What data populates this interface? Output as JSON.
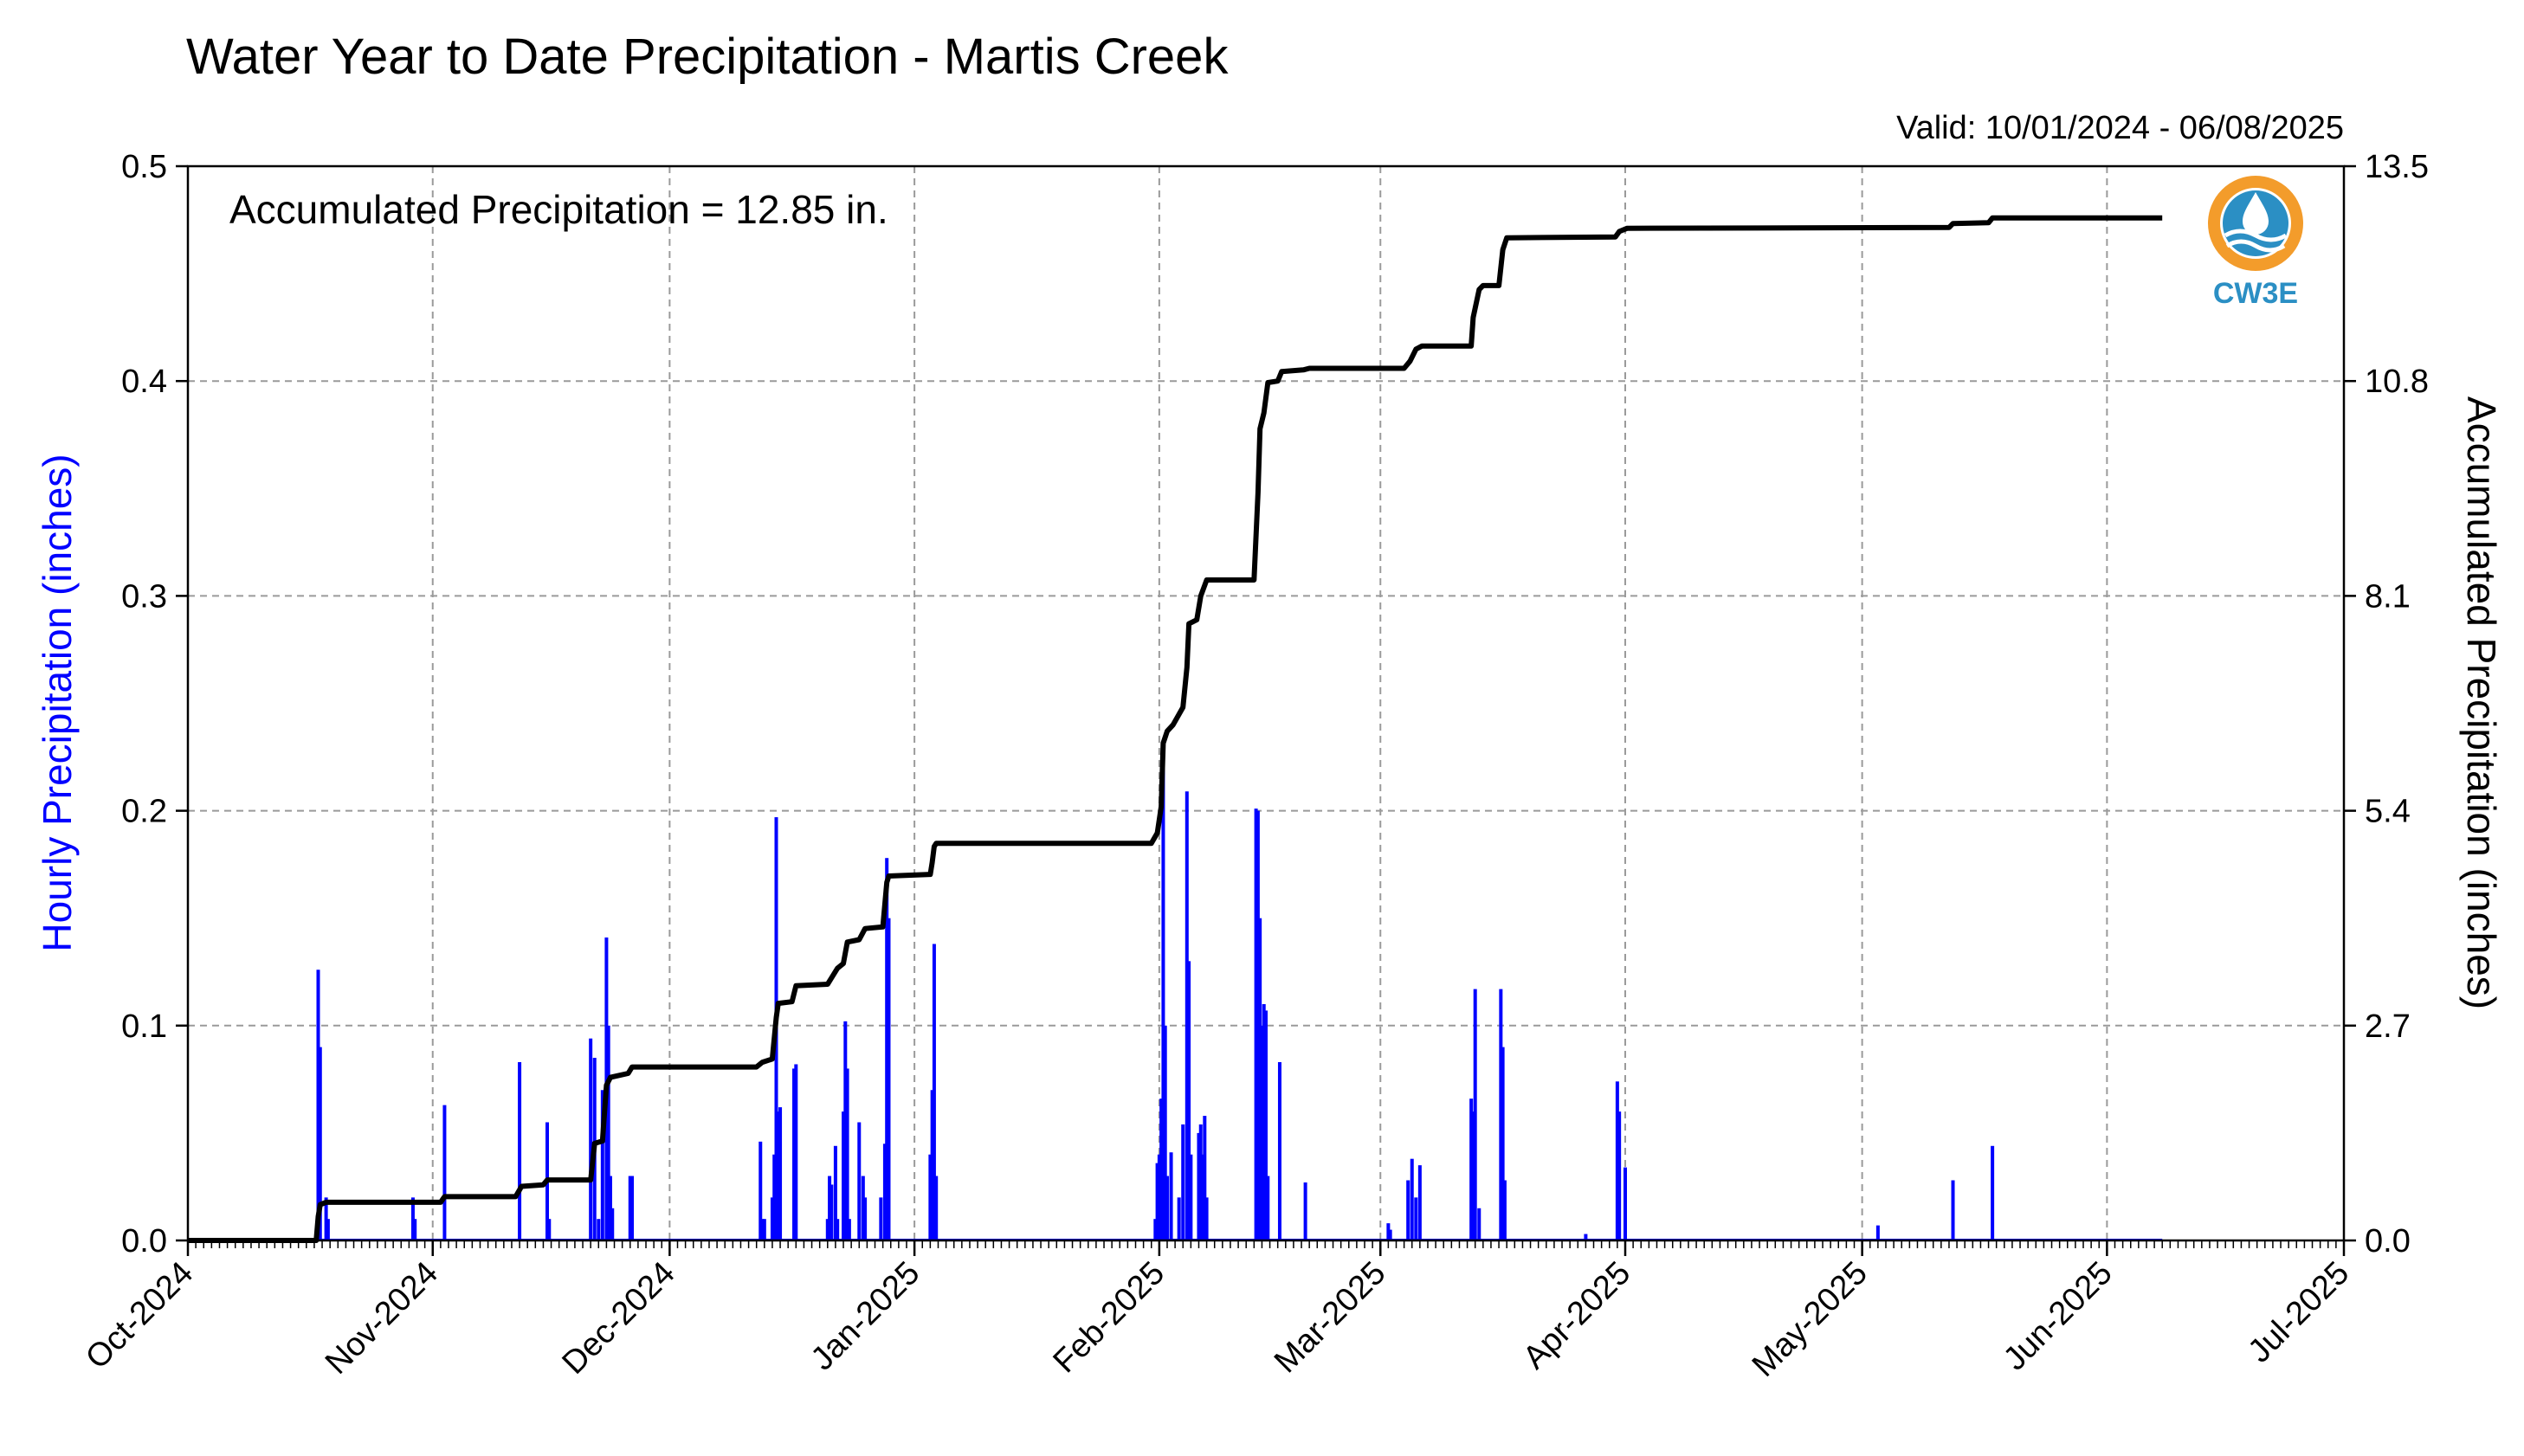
{
  "logo": {
    "label": "CW3E",
    "color": "#2b8fc4",
    "ring_color": "#f39c2b"
  },
  "colors": {
    "hourly": "#0000ff",
    "accum": "#000000",
    "grid": "#9a9a9a"
  },
  "chart_data": {
    "type": "bar",
    "title": "Water Year to Date Precipitation - Martis Creek",
    "subtitle": "Valid: 10/01/2024 - 06/08/2025",
    "annotation": "Accumulated Precipitation = 12.85 in.",
    "ylabel": "Hourly Precipitation (inches)",
    "y2label": "Accumulated Precipitation (inches)",
    "xlim": [
      "2024-10-01",
      "2025-07-01"
    ],
    "ylim": [
      0,
      0.5
    ],
    "y2lim": [
      0,
      13.5
    ],
    "yticks": [
      "0.0",
      "0.1",
      "0.2",
      "0.3",
      "0.4",
      "0.5"
    ],
    "y2ticks": [
      "0.0",
      "2.7",
      "5.4",
      "8.1",
      "10.8",
      "13.5"
    ],
    "xticks": [
      "Oct-2024",
      "Nov-2024",
      "Dec-2024",
      "Jan-2025",
      "Feb-2025",
      "Mar-2025",
      "Apr-2025",
      "May-2025",
      "Jun-2025",
      "Jul-2025"
    ],
    "xtick_dates": [
      "2024-10-01",
      "2024-11-01",
      "2024-12-01",
      "2025-01-01",
      "2025-02-01",
      "2025-03-01",
      "2025-04-01",
      "2025-05-01",
      "2025-06-01",
      "2025-07-01"
    ],
    "grid": true,
    "series": [
      {
        "name": "Hourly Precipitation",
        "type": "bar",
        "points": [
          [
            "2024-10-17T12:00",
            0.126
          ],
          [
            "2024-10-17T18:00",
            0.09
          ],
          [
            "2024-10-18T12:00",
            0.02
          ],
          [
            "2024-10-18T18:00",
            0.01
          ],
          [
            "2024-10-29T12:00",
            0.02
          ],
          [
            "2024-10-29T18:00",
            0.01
          ],
          [
            "2024-11-02T12:00",
            0.063
          ],
          [
            "2024-11-12T00:00",
            0.083
          ],
          [
            "2024-11-15T12:00",
            0.055
          ],
          [
            "2024-11-15T18:00",
            0.01
          ],
          [
            "2024-11-21T00:00",
            0.094
          ],
          [
            "2024-11-21T12:00",
            0.085
          ],
          [
            "2024-11-22T00:00",
            0.01
          ],
          [
            "2024-11-22T12:00",
            0.07
          ],
          [
            "2024-11-23T00:00",
            0.141
          ],
          [
            "2024-11-23T06:00",
            0.1
          ],
          [
            "2024-11-23T12:00",
            0.03
          ],
          [
            "2024-11-23T18:00",
            0.015
          ],
          [
            "2024-11-26T00:00",
            0.03
          ],
          [
            "2024-11-26T06:00",
            0.03
          ],
          [
            "2024-12-12T12:00",
            0.046
          ],
          [
            "2024-12-12T18:00",
            0.01
          ],
          [
            "2024-12-13T00:00",
            0.01
          ],
          [
            "2024-12-14T00:00",
            0.02
          ],
          [
            "2024-12-14T06:00",
            0.04
          ],
          [
            "2024-12-14T12:00",
            0.197
          ],
          [
            "2024-12-14T18:00",
            0.06
          ],
          [
            "2024-12-15T00:00",
            0.062
          ],
          [
            "2024-12-16T18:00",
            0.08
          ],
          [
            "2024-12-17T00:00",
            0.082
          ],
          [
            "2024-12-21T00:00",
            0.01
          ],
          [
            "2024-12-21T06:00",
            0.03
          ],
          [
            "2024-12-21T12:00",
            0.026
          ],
          [
            "2024-12-22T00:00",
            0.044
          ],
          [
            "2024-12-22T06:00",
            0.01
          ],
          [
            "2024-12-23T00:00",
            0.06
          ],
          [
            "2024-12-23T06:00",
            0.102
          ],
          [
            "2024-12-23T12:00",
            0.08
          ],
          [
            "2024-12-23T18:00",
            0.01
          ],
          [
            "2024-12-25T00:00",
            0.055
          ],
          [
            "2024-12-25T12:00",
            0.03
          ],
          [
            "2024-12-25T18:00",
            0.02
          ],
          [
            "2024-12-27T18:00",
            0.02
          ],
          [
            "2024-12-28T06:00",
            0.045
          ],
          [
            "2024-12-28T12:00",
            0.178
          ],
          [
            "2024-12-28T18:00",
            0.15
          ],
          [
            "2025-01-03T00:00",
            0.04
          ],
          [
            "2025-01-03T06:00",
            0.07
          ],
          [
            "2025-01-03T12:00",
            0.138
          ],
          [
            "2025-01-03T18:00",
            0.03
          ],
          [
            "2025-01-31T12:00",
            0.01
          ],
          [
            "2025-01-31T18:00",
            0.036
          ],
          [
            "2025-02-01T00:00",
            0.04
          ],
          [
            "2025-02-01T06:00",
            0.066
          ],
          [
            "2025-02-01T12:00",
            0.23
          ],
          [
            "2025-02-01T18:00",
            0.1
          ],
          [
            "2025-02-02T00:00",
            0.03
          ],
          [
            "2025-02-02T12:00",
            0.041
          ],
          [
            "2025-02-03T12:00",
            0.02
          ],
          [
            "2025-02-04T00:00",
            0.054
          ],
          [
            "2025-02-04T12:00",
            0.209
          ],
          [
            "2025-02-04T18:00",
            0.13
          ],
          [
            "2025-02-05T00:00",
            0.04
          ],
          [
            "2025-02-06T00:00",
            0.05
          ],
          [
            "2025-02-06T06:00",
            0.054
          ],
          [
            "2025-02-06T12:00",
            0.04
          ],
          [
            "2025-02-06T18:00",
            0.058
          ],
          [
            "2025-02-07T00:00",
            0.02
          ],
          [
            "2025-02-13T06:00",
            0.201
          ],
          [
            "2025-02-13T12:00",
            0.2
          ],
          [
            "2025-02-13T18:00",
            0.15
          ],
          [
            "2025-02-14T00:00",
            0.1
          ],
          [
            "2025-02-14T06:00",
            0.11
          ],
          [
            "2025-02-14T12:00",
            0.107
          ],
          [
            "2025-02-14T18:00",
            0.03
          ],
          [
            "2025-02-16T06:00",
            0.083
          ],
          [
            "2025-02-19T12:00",
            0.027
          ],
          [
            "2025-03-02T00:00",
            0.008
          ],
          [
            "2025-03-02T06:00",
            0.005
          ],
          [
            "2025-03-04T12:00",
            0.028
          ],
          [
            "2025-03-05T00:00",
            0.038
          ],
          [
            "2025-03-05T12:00",
            0.02
          ],
          [
            "2025-03-06T00:00",
            0.035
          ],
          [
            "2025-03-12T12:00",
            0.066
          ],
          [
            "2025-03-12T18:00",
            0.06
          ],
          [
            "2025-03-13T00:00",
            0.117
          ],
          [
            "2025-03-13T12:00",
            0.015
          ],
          [
            "2025-03-16T06:00",
            0.117
          ],
          [
            "2025-03-16T12:00",
            0.09
          ],
          [
            "2025-03-16T18:00",
            0.028
          ],
          [
            "2025-03-27T00:00",
            0.003
          ],
          [
            "2025-03-31T00:00",
            0.074
          ],
          [
            "2025-03-31T06:00",
            0.06
          ],
          [
            "2025-04-01T00:00",
            0.034
          ],
          [
            "2025-05-03T00:00",
            0.007
          ],
          [
            "2025-05-12T12:00",
            0.028
          ],
          [
            "2025-05-17T12:00",
            0.044
          ]
        ]
      },
      {
        "name": "Accumulated Precipitation",
        "type": "line",
        "points": [
          [
            "2024-10-01",
            0.0
          ],
          [
            "2024-10-17T06:00",
            0.0
          ],
          [
            "2024-10-17T12:00",
            0.3
          ],
          [
            "2024-10-17T18:00",
            0.45
          ],
          [
            "2024-10-18T12:00",
            0.48
          ],
          [
            "2024-11-02T00:00",
            0.48
          ],
          [
            "2024-11-02T12:00",
            0.55
          ],
          [
            "2024-11-11T12:00",
            0.55
          ],
          [
            "2024-11-12T06:00",
            0.68
          ],
          [
            "2024-11-15T00:00",
            0.7
          ],
          [
            "2024-11-15T12:00",
            0.76
          ],
          [
            "2024-11-21T00:00",
            0.76
          ],
          [
            "2024-11-21T12:00",
            1.22
          ],
          [
            "2024-11-22T12:00",
            1.25
          ],
          [
            "2024-11-23T00:00",
            1.95
          ],
          [
            "2024-11-23T12:00",
            2.05
          ],
          [
            "2024-11-25T18:00",
            2.1
          ],
          [
            "2024-11-26T06:00",
            2.18
          ],
          [
            "2024-12-12T00:00",
            2.18
          ],
          [
            "2024-12-12T18:00",
            2.24
          ],
          [
            "2024-12-14T00:00",
            2.28
          ],
          [
            "2024-12-14T12:00",
            2.8
          ],
          [
            "2024-12-14T18:00",
            2.98
          ],
          [
            "2024-12-16T12:00",
            3.0
          ],
          [
            "2024-12-17T00:00",
            3.2
          ],
          [
            "2024-12-21T00:00",
            3.22
          ],
          [
            "2024-12-21T12:00",
            3.3
          ],
          [
            "2024-12-22T06:00",
            3.42
          ],
          [
            "2024-12-23T00:00",
            3.48
          ],
          [
            "2024-12-23T12:00",
            3.75
          ],
          [
            "2024-12-25T00:00",
            3.78
          ],
          [
            "2024-12-25T18:00",
            3.92
          ],
          [
            "2024-12-28T00:00",
            3.94
          ],
          [
            "2024-12-28T12:00",
            4.5
          ],
          [
            "2024-12-28T18:00",
            4.58
          ],
          [
            "2025-01-03T00:00",
            4.6
          ],
          [
            "2025-01-03T06:00",
            4.75
          ],
          [
            "2025-01-03T12:00",
            4.95
          ],
          [
            "2025-01-03T18:00",
            4.99
          ],
          [
            "2025-01-31T00:00",
            4.99
          ],
          [
            "2025-01-31T18:00",
            5.12
          ],
          [
            "2025-02-01T06:00",
            5.45
          ],
          [
            "2025-02-01T12:00",
            6.25
          ],
          [
            "2025-02-02T00:00",
            6.4
          ],
          [
            "2025-02-02T18:00",
            6.48
          ],
          [
            "2025-02-04T00:00",
            6.7
          ],
          [
            "2025-02-04T12:00",
            7.2
          ],
          [
            "2025-02-04T18:00",
            7.75
          ],
          [
            "2025-02-05T18:00",
            7.8
          ],
          [
            "2025-02-06T06:00",
            8.1
          ],
          [
            "2025-02-07T00:00",
            8.3
          ],
          [
            "2025-02-13T00:00",
            8.3
          ],
          [
            "2025-02-13T12:00",
            9.4
          ],
          [
            "2025-02-13T18:00",
            10.2
          ],
          [
            "2025-02-14T06:00",
            10.4
          ],
          [
            "2025-02-14T18:00",
            10.78
          ],
          [
            "2025-02-16T00:00",
            10.8
          ],
          [
            "2025-02-16T12:00",
            10.92
          ],
          [
            "2025-02-19T06:00",
            10.94
          ],
          [
            "2025-02-20T00:00",
            10.96
          ],
          [
            "2025-03-04T00:00",
            10.96
          ],
          [
            "2025-03-04T18:00",
            11.05
          ],
          [
            "2025-03-05T12:00",
            11.2
          ],
          [
            "2025-03-06T06:00",
            11.24
          ],
          [
            "2025-03-12T12:00",
            11.24
          ],
          [
            "2025-03-12T18:00",
            11.6
          ],
          [
            "2025-03-13T12:00",
            11.95
          ],
          [
            "2025-03-14T00:00",
            12.0
          ],
          [
            "2025-03-16T00:00",
            12.0
          ],
          [
            "2025-03-16T12:00",
            12.45
          ],
          [
            "2025-03-17T00:00",
            12.6
          ],
          [
            "2025-03-30T18:00",
            12.61
          ],
          [
            "2025-03-31T06:00",
            12.68
          ],
          [
            "2025-04-01T06:00",
            12.72
          ],
          [
            "2025-05-12T00:00",
            12.73
          ],
          [
            "2025-05-12T12:00",
            12.78
          ],
          [
            "2025-05-17T00:00",
            12.79
          ],
          [
            "2025-05-17T12:00",
            12.85
          ],
          [
            "2025-06-08T00:00",
            12.85
          ]
        ]
      }
    ]
  }
}
